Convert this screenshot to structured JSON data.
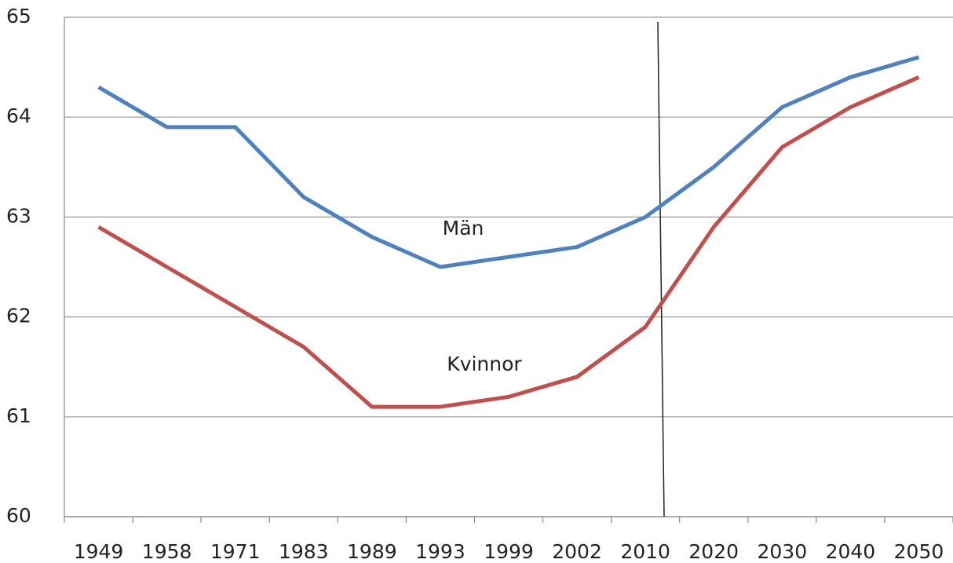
{
  "chart_data": {
    "type": "line",
    "categories": [
      "1949",
      "1958",
      "1971",
      "1983",
      "1989",
      "1993",
      "1999",
      "2002",
      "2010",
      "2020",
      "2030",
      "2040",
      "2050"
    ],
    "series": [
      {
        "name": "Män",
        "color": "#4f81bd",
        "values": [
          64.3,
          63.9,
          63.9,
          63.2,
          62.8,
          62.5,
          62.6,
          62.7,
          63.0,
          63.5,
          64.1,
          64.4,
          64.6
        ]
      },
      {
        "name": "Kvinnor",
        "color": "#c0504d",
        "values": [
          62.9,
          62.5,
          62.1,
          61.7,
          61.1,
          61.1,
          61.2,
          61.4,
          61.9,
          62.9,
          63.7,
          64.1,
          64.4
        ]
      }
    ],
    "ylim": [
      60,
      65
    ],
    "yticks": [
      60,
      61,
      62,
      63,
      64,
      65
    ],
    "grid": true
  }
}
